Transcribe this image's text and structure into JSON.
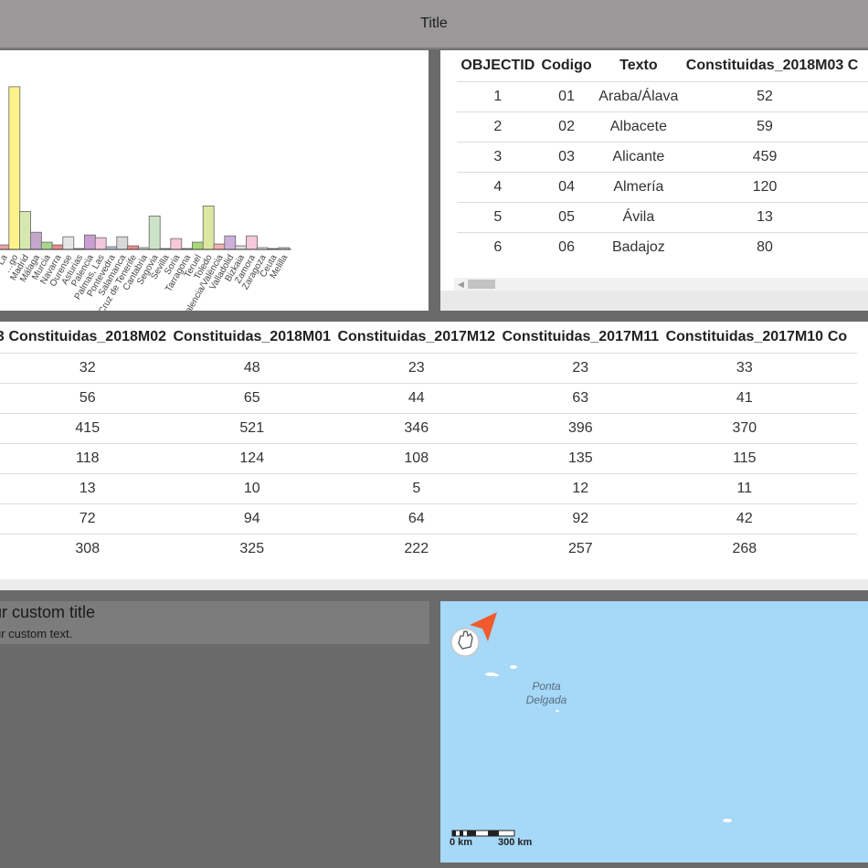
{
  "header": {
    "title": "Title"
  },
  "chart_data": {
    "type": "bar",
    "categories": [
      "La",
      "…go",
      "Madrid",
      "Málaga",
      "Murcia",
      "Navarra",
      "Ourense",
      "Asturias",
      "Palencia",
      "Palmas, Las",
      "Pontevedra",
      "Salamanca",
      "Santa Cruz de Tenerife",
      "Cantabria",
      "Segovia",
      "Sevilla",
      "Soria",
      "Tarragona",
      "Teruel",
      "Toledo",
      "Valencia/València",
      "Valladolid",
      "Bizkaia",
      "Zamora",
      "Zaragoza",
      "Ceuta",
      "Melilla"
    ],
    "values": [
      5,
      180,
      42,
      19,
      8,
      5,
      14,
      1,
      16,
      13,
      3,
      14,
      4,
      2,
      37,
      1,
      12,
      1,
      8,
      48,
      6,
      15,
      4,
      15,
      2,
      1,
      2
    ],
    "colors": [
      "#e8a4a4",
      "#fff28c",
      "#d6e8b0",
      "#c4a7cb",
      "#a7d68c",
      "#e88a8a",
      "#e6e6e6",
      "#f0f0f0",
      "#c99ed2",
      "#f2c6dc",
      "#b4c4d8",
      "#d8d8d8",
      "#f08888",
      "#e0e0e0",
      "#cde3c8",
      "#f4f4f4",
      "#f6c8d8",
      "#e8e8e8",
      "#a8d878",
      "#dce8a0",
      "#f0b0b0",
      "#cdb0d8",
      "#dcdcdc",
      "#f4c8d8",
      "#eeeeee",
      "#f0f0f0",
      "#cccccc"
    ],
    "ylim": [
      0,
      190
    ],
    "grid": false
  },
  "table_top": {
    "columns": [
      "OBJECTID",
      "Codigo",
      "Texto",
      "Constituidas_2018M03",
      "C"
    ],
    "rows": [
      [
        "1",
        "01",
        "Araba/Álava",
        "52"
      ],
      [
        "2",
        "02",
        "Albacete",
        "59"
      ],
      [
        "3",
        "03",
        "Alicante",
        "459"
      ],
      [
        "4",
        "04",
        "Almería",
        "120"
      ],
      [
        "5",
        "05",
        "Ávila",
        "13"
      ],
      [
        "6",
        "06",
        "Badajoz",
        "80"
      ]
    ]
  },
  "table_mid": {
    "columns": [
      "3",
      "Constituidas_2018M02",
      "Constituidas_2018M01",
      "Constituidas_2017M12",
      "Constituidas_2017M11",
      "Constituidas_2017M10",
      "Co"
    ],
    "rows": [
      [
        "32",
        "48",
        "23",
        "23",
        "33"
      ],
      [
        "56",
        "65",
        "44",
        "63",
        "41"
      ],
      [
        "415",
        "521",
        "346",
        "396",
        "370"
      ],
      [
        "118",
        "124",
        "108",
        "135",
        "115"
      ],
      [
        "13",
        "10",
        "5",
        "12",
        "11"
      ],
      [
        "72",
        "94",
        "64",
        "92",
        "42"
      ],
      [
        "308",
        "325",
        "222",
        "257",
        "268"
      ]
    ]
  },
  "custom_panel": {
    "title": "ur custom title",
    "text": "ur custom text."
  },
  "map": {
    "place_label_1": "Ponta",
    "place_label_2": "Delgada",
    "scale_left": "0 km",
    "scale_right": "300 km",
    "compass_icon": "locate-hand-icon",
    "arrow_icon": "north-arrow-icon",
    "water_color": "#a6d8f7"
  }
}
